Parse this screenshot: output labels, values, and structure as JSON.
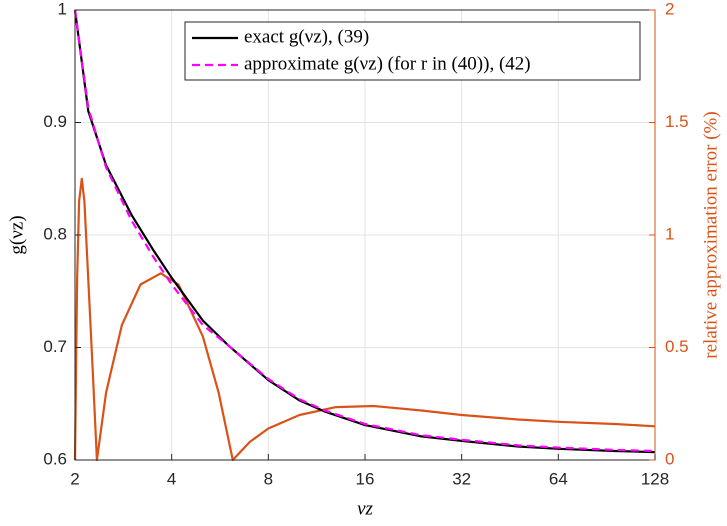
{
  "chart_data": {
    "type": "line",
    "x_label": "νz",
    "y_label": "g(νz)",
    "y2_label": "relative approximation error (%)",
    "xscale": "log2",
    "xlim": [
      2,
      128
    ],
    "xticks": [
      2,
      4,
      8,
      16,
      32,
      64,
      128
    ],
    "ylim": [
      0.6,
      1
    ],
    "yticks": [
      0.6,
      0.7,
      0.8,
      0.9,
      1
    ],
    "y2lim": [
      0,
      2
    ],
    "y2ticks": [
      0,
      0.5,
      1,
      1.5,
      2
    ],
    "grid": true,
    "legend": "top-right",
    "series": [
      {
        "name": "exact g(νz), (39)",
        "color": "#000000",
        "dash": false,
        "x": [
          2,
          2.2,
          2.5,
          3,
          3.5,
          4,
          5,
          6,
          8,
          10,
          12,
          16,
          24,
          32,
          48,
          64,
          96,
          128
        ],
        "values": [
          1.0,
          0.91,
          0.862,
          0.818,
          0.787,
          0.762,
          0.724,
          0.702,
          0.671,
          0.653,
          0.643,
          0.631,
          0.621,
          0.617,
          0.612,
          0.61,
          0.608,
          0.607
        ]
      },
      {
        "name": "approximate g(νz) (for r in (40)), (42)",
        "color": "#ff00ff",
        "dash": true,
        "x": [
          2,
          2.2,
          2.5,
          3,
          3.5,
          4,
          5,
          6,
          8,
          10,
          12,
          16,
          24,
          32,
          48,
          64,
          96,
          128
        ],
        "values": [
          1.0,
          0.913,
          0.86,
          0.813,
          0.781,
          0.756,
          0.72,
          0.702,
          0.672,
          0.654,
          0.644,
          0.632,
          0.622,
          0.618,
          0.613,
          0.611,
          0.609,
          0.608
        ]
      },
      {
        "name": "relative approximation error",
        "color": "#d95319",
        "dash": false,
        "axis": "y2",
        "in_legend": false,
        "x": [
          2,
          2.03,
          2.06,
          2.1,
          2.14,
          2.2,
          2.27,
          2.34,
          2.5,
          2.8,
          3.2,
          3.7,
          4.2,
          5,
          5.6,
          6.2,
          7,
          8,
          10,
          13,
          17,
          24,
          32,
          48,
          64,
          96,
          128
        ],
        "values": [
          0,
          0.8,
          1.15,
          1.25,
          1.15,
          0.8,
          0.4,
          0,
          0.3,
          0.6,
          0.78,
          0.83,
          0.78,
          0.55,
          0.3,
          0,
          0.08,
          0.14,
          0.2,
          0.235,
          0.24,
          0.22,
          0.2,
          0.18,
          0.17,
          0.16,
          0.15
        ]
      }
    ]
  }
}
